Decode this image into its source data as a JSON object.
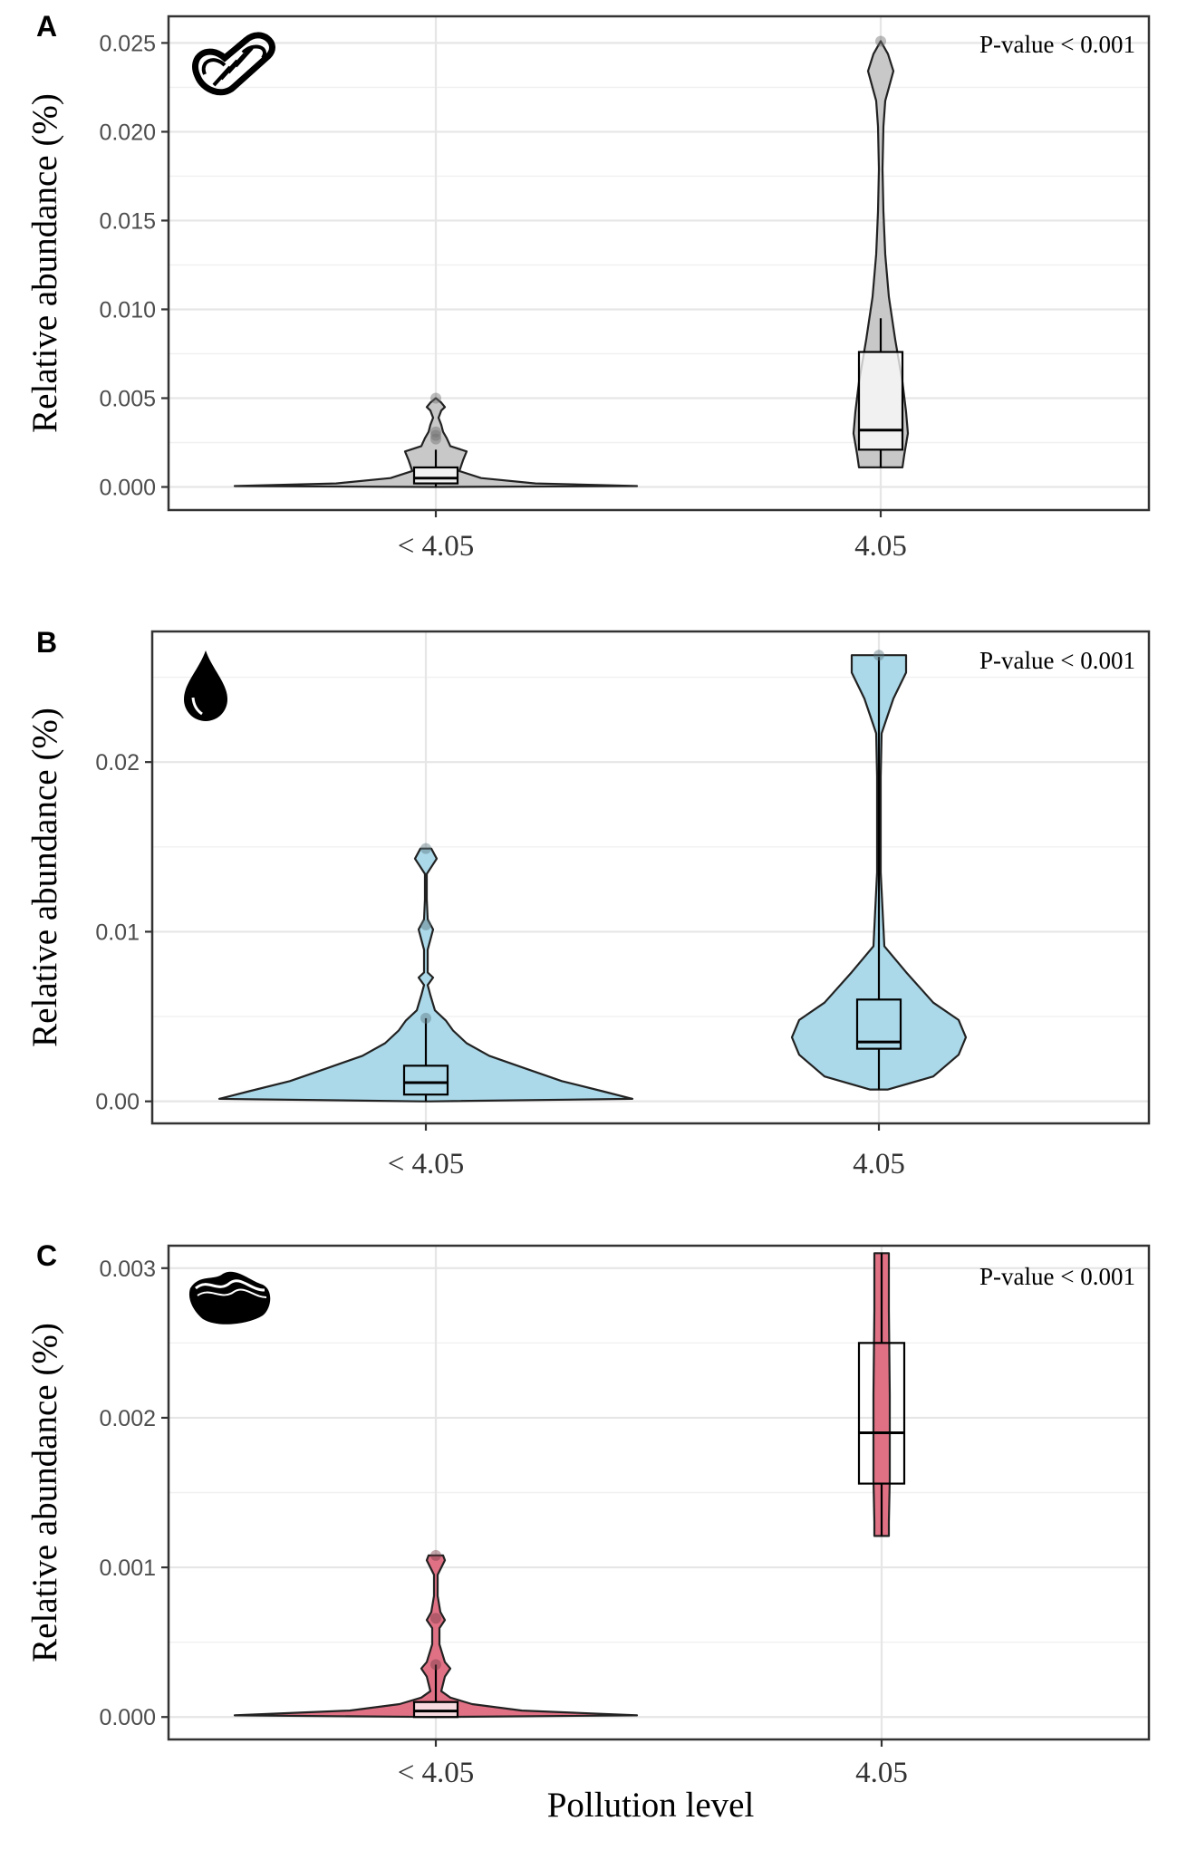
{
  "colors": {
    "A": "#c8c8c8",
    "B": "#abd9e9",
    "C": "#e07185"
  },
  "xlabel": "Pollution level",
  "chart_data": [
    {
      "type": "violin",
      "panel": "A",
      "icon": "rope-icon",
      "title": "",
      "xlabel": "",
      "ylabel": "Relative abundance (%)",
      "categories": [
        "< 4.05",
        "4.05"
      ],
      "ylim": [
        -0.0013,
        0.0265
      ],
      "yticks": [
        "0.000",
        "0.005",
        "0.010",
        "0.015",
        "0.020",
        "0.025"
      ],
      "annotation": "P-value < 0.001",
      "series": [
        {
          "name": "< 4.05",
          "color": "#c8c8c8",
          "box": {
            "q1": 0.0002,
            "median": 0.0005,
            "q3": 0.0011,
            "whisker_low": 0.0,
            "whisker_high": 0.0021
          },
          "range": [
            0.0,
            0.005
          ],
          "outliers": [
            0.0027,
            0.0029,
            0.0031,
            0.005
          ]
        },
        {
          "name": "4.05",
          "color": "#c8c8c8",
          "box": {
            "q1": 0.0021,
            "median": 0.0032,
            "q3": 0.0076,
            "whisker_low": 0.0011,
            "whisker_high": 0.0095
          },
          "range": [
            0.0011,
            0.0251
          ],
          "outliers": [
            0.0251
          ]
        }
      ]
    },
    {
      "type": "violin",
      "panel": "B",
      "icon": "oil-drop-icon",
      "title": "",
      "xlabel": "",
      "ylabel": "Relative abundance (%)",
      "categories": [
        "< 4.05",
        "4.05"
      ],
      "ylim": [
        -0.0013,
        0.0277
      ],
      "yticks": [
        "0.00",
        "0.01",
        "0.02"
      ],
      "annotation": "P-value < 0.001",
      "series": [
        {
          "name": "< 4.05",
          "color": "#abd9e9",
          "box": {
            "q1": 0.0004,
            "median": 0.0011,
            "q3": 0.0021,
            "whisker_low": 0.0,
            "whisker_high": 0.0049
          },
          "range": [
            0.0,
            0.0149
          ],
          "outliers": [
            0.0049,
            0.0104,
            0.0149
          ]
        },
        {
          "name": "4.05",
          "color": "#abd9e9",
          "box": {
            "q1": 0.0031,
            "median": 0.0035,
            "q3": 0.006,
            "whisker_low": 0.0007,
            "whisker_high": 0.0262
          },
          "range": [
            0.0007,
            0.0263
          ],
          "outliers": [
            0.0263
          ]
        }
      ]
    },
    {
      "type": "violin",
      "panel": "C",
      "icon": "mussel-icon",
      "title": "",
      "xlabel": "Pollution level",
      "ylabel": "Relative abundance (%)",
      "categories": [
        "< 4.05",
        "4.05"
      ],
      "ylim": [
        -0.00015,
        0.00315
      ],
      "yticks": [
        "0.000",
        "0.001",
        "0.002",
        "0.003"
      ],
      "annotation": "P-value < 0.001",
      "series": [
        {
          "name": "< 4.05",
          "color": "#e07185",
          "box": {
            "q1": 0.0,
            "median": 4e-05,
            "q3": 0.0001,
            "whisker_low": 0.0,
            "whisker_high": 0.00035
          },
          "range": [
            0.0,
            0.00108
          ],
          "outliers": [
            0.00035,
            0.00066,
            0.00108
          ]
        },
        {
          "name": "4.05",
          "color": "#e07185",
          "box": {
            "q1": 0.00156,
            "median": 0.0019,
            "q3": 0.0025,
            "whisker_low": 0.00121,
            "whisker_high": 0.0031
          },
          "range": [
            0.00121,
            0.0031
          ],
          "outliers": []
        }
      ]
    }
  ]
}
